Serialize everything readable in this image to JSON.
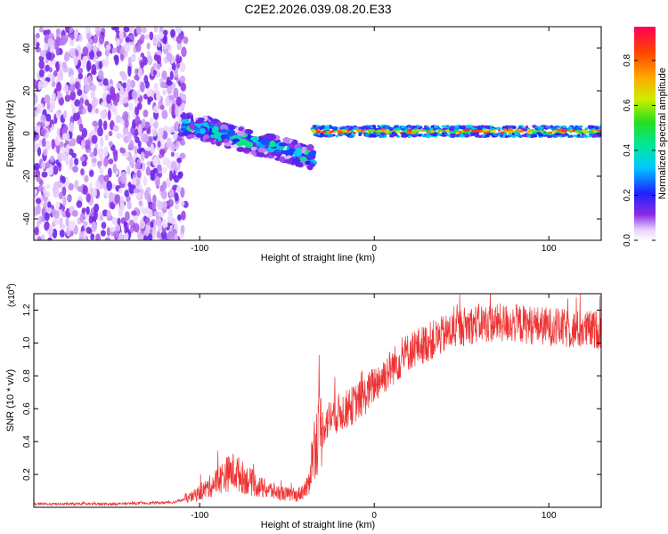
{
  "chart_data": [
    {
      "type": "heatmap",
      "title": "C2E2.2026.039.08.20.E33",
      "xlabel": "Height of straight line (km)",
      "ylabel": "Frequency (Hz)",
      "xlim": [
        -195,
        130
      ],
      "ylim": [
        -50,
        50
      ],
      "xticks": [
        -100,
        0,
        100
      ],
      "xtick_labels": [
        "-100",
        "0",
        "100"
      ],
      "yticks": [
        -40,
        -20,
        0,
        20,
        40
      ],
      "ytick_labels": [
        "-40",
        "-20",
        "0",
        "20",
        "40"
      ],
      "colorbar": {
        "label": "Normalized spectral amplitude",
        "range": [
          0,
          0.95
        ],
        "ticks": [
          0,
          0.2,
          0.4,
          0.6,
          0.8
        ],
        "tick_labels": [
          "0.0",
          "0.2",
          "0.4",
          "0.6",
          "0.8"
        ]
      },
      "regions": [
        {
          "name": "broadband noise",
          "x_range": [
            -195,
            -110
          ],
          "freq_range": [
            -50,
            50
          ],
          "amplitude": [
            0.05,
            0.15
          ]
        },
        {
          "name": "wandering signal",
          "x_range": [
            -110,
            -35
          ],
          "freq_center": [
            4,
            2,
            -2,
            -5,
            -8,
            -12
          ],
          "amplitude": [
            0.1,
            0.45
          ]
        },
        {
          "name": "locked carrier",
          "x_range": [
            -35,
            130
          ],
          "freq_center": 1,
          "amplitude": [
            0.4,
            0.9
          ]
        }
      ]
    },
    {
      "type": "line",
      "xlabel": "Height of straight line (km)",
      "ylabel": "SNR (10 * v/v)",
      "exponent_label": "(x10",
      "exponent_value": "4",
      "exponent_close": ")",
      "xlim": [
        -195,
        130
      ],
      "ylim": [
        0,
        1.3
      ],
      "xticks": [
        -100,
        0,
        100
      ],
      "xtick_labels": [
        "-100",
        "0",
        "100"
      ],
      "yticks": [
        0.2,
        0.4,
        0.6,
        0.8,
        1.0,
        1.2
      ],
      "ytick_labels": [
        "0.2",
        "0.4",
        "0.6",
        "0.8",
        "1.0",
        "1.2"
      ],
      "series": [
        {
          "name": "SNR",
          "color": "#ee3333",
          "x": [
            -195,
            -150,
            -115,
            -105,
            -95,
            -85,
            -80,
            -75,
            -65,
            -55,
            -45,
            -38,
            -35,
            -32,
            -25,
            -15,
            -5,
            0,
            10,
            20,
            30,
            40,
            50,
            60,
            80,
            100,
            115,
            130
          ],
          "y": [
            0.02,
            0.02,
            0.03,
            0.06,
            0.12,
            0.2,
            0.22,
            0.18,
            0.12,
            0.09,
            0.07,
            0.12,
            0.35,
            0.45,
            0.55,
            0.6,
            0.68,
            0.75,
            0.85,
            0.95,
            1.0,
            1.05,
            1.1,
            1.12,
            1.12,
            1.1,
            1.08,
            1.08
          ]
        }
      ]
    }
  ]
}
